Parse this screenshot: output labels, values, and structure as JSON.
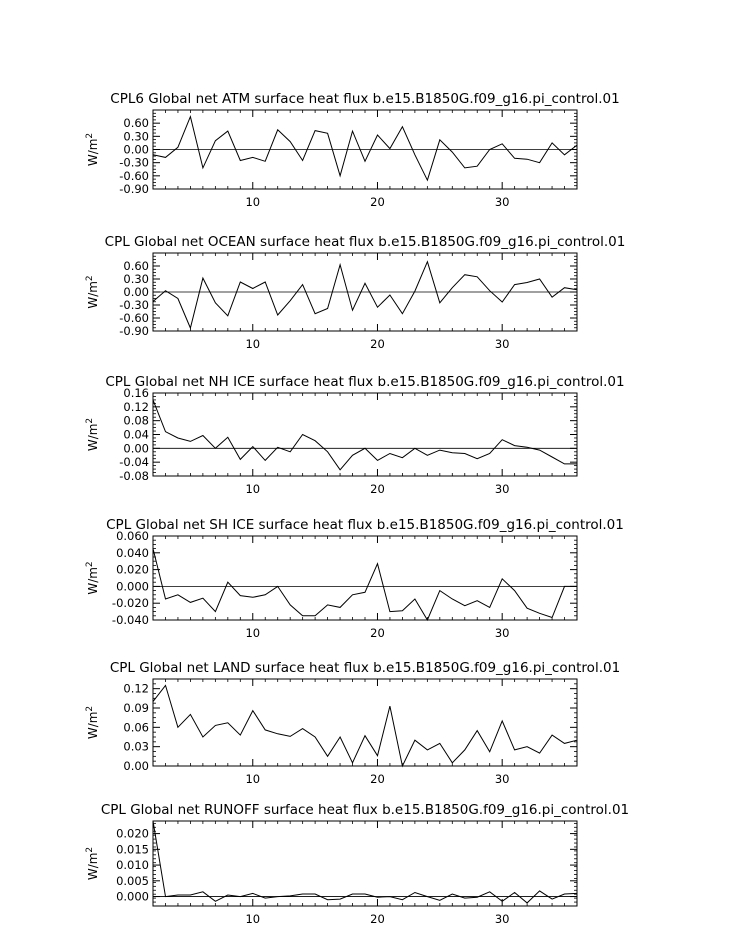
{
  "chart_data": [
    {
      "type": "line",
      "title": "CPL6 Global net ATM surface heat flux b.e15.B1850G.f09_g16.pi_control.01",
      "ylabel": "W/m",
      "ylabel_sup": "2",
      "xlim": [
        2,
        36
      ],
      "ylim": [
        -0.9,
        0.9
      ],
      "xticks": [
        10,
        20,
        30
      ],
      "yticks": [
        0.6,
        0.3,
        0.0,
        -0.3,
        -0.6,
        -0.9
      ],
      "ytick_labels": [
        "0.60",
        "0.30",
        "0.00",
        "-0.30",
        "-0.60",
        "-0.90"
      ],
      "reference_line": 0,
      "x": [
        2,
        3,
        4,
        5,
        6,
        7,
        8,
        9,
        10,
        11,
        12,
        13,
        14,
        15,
        16,
        17,
        18,
        19,
        20,
        21,
        22,
        23,
        24,
        25,
        26,
        27,
        28,
        29,
        30,
        31,
        32,
        33,
        34,
        35,
        36
      ],
      "values": [
        -0.12,
        -0.18,
        0.05,
        0.75,
        -0.42,
        0.2,
        0.42,
        -0.25,
        -0.18,
        -0.27,
        0.45,
        0.18,
        -0.25,
        0.43,
        0.37,
        -0.6,
        0.42,
        -0.27,
        0.33,
        0.02,
        0.52,
        -0.12,
        -0.7,
        0.22,
        -0.06,
        -0.42,
        -0.38,
        0.0,
        0.13,
        -0.2,
        -0.22,
        -0.3,
        0.15,
        -0.12,
        0.1
      ]
    },
    {
      "type": "line",
      "title": "CPL Global net OCEAN surface heat flux b.e15.B1850G.f09_g16.pi_control.01",
      "ylabel": "W/m",
      "ylabel_sup": "2",
      "xlim": [
        2,
        36
      ],
      "ylim": [
        -0.9,
        0.9
      ],
      "xticks": [
        10,
        20,
        30
      ],
      "yticks": [
        0.6,
        0.3,
        0.0,
        -0.3,
        -0.6,
        -0.9
      ],
      "ytick_labels": [
        "0.60",
        "0.30",
        "0.00",
        "-0.30",
        "-0.60",
        "-0.90"
      ],
      "reference_line": 0,
      "x": [
        2,
        3,
        4,
        5,
        6,
        7,
        8,
        9,
        10,
        11,
        12,
        13,
        14,
        15,
        16,
        17,
        18,
        19,
        20,
        21,
        22,
        23,
        24,
        25,
        26,
        27,
        28,
        29,
        30,
        31,
        32,
        33,
        34,
        35,
        36
      ],
      "values": [
        -0.22,
        0.03,
        -0.15,
        -0.83,
        0.32,
        -0.25,
        -0.55,
        0.23,
        0.08,
        0.23,
        -0.53,
        -0.2,
        0.17,
        -0.5,
        -0.38,
        0.63,
        -0.42,
        0.2,
        -0.35,
        -0.07,
        -0.5,
        0.02,
        0.7,
        -0.25,
        0.1,
        0.4,
        0.35,
        0.03,
        -0.23,
        0.17,
        0.22,
        0.3,
        -0.12,
        0.1,
        0.05
      ]
    },
    {
      "type": "line",
      "title": "CPL Global net NH ICE surface heat flux b.e15.B1850G.f09_g16.pi_control.01",
      "ylabel": "W/m",
      "ylabel_sup": "2",
      "xlim": [
        2,
        36
      ],
      "ylim": [
        -0.08,
        0.16
      ],
      "xticks": [
        10,
        20,
        30
      ],
      "yticks": [
        0.16,
        0.12,
        0.08,
        0.04,
        0.0,
        -0.04,
        -0.08
      ],
      "ytick_labels": [
        "0.16",
        "0.12",
        "0.08",
        "0.04",
        "0.00",
        "-0.04",
        "-0.08"
      ],
      "reference_line": 0,
      "x": [
        2,
        3,
        4,
        5,
        6,
        7,
        8,
        9,
        10,
        11,
        12,
        13,
        14,
        15,
        16,
        17,
        18,
        19,
        20,
        21,
        22,
        23,
        24,
        25,
        26,
        27,
        28,
        29,
        30,
        31,
        32,
        33,
        34,
        35,
        36
      ],
      "values": [
        0.14,
        0.048,
        0.03,
        0.02,
        0.037,
        0.0,
        0.032,
        -0.032,
        0.005,
        -0.035,
        0.003,
        -0.01,
        0.04,
        0.022,
        -0.01,
        -0.062,
        -0.02,
        0.0,
        -0.035,
        -0.015,
        -0.027,
        0.0,
        -0.02,
        -0.005,
        -0.013,
        -0.015,
        -0.03,
        -0.015,
        0.025,
        0.008,
        0.003,
        -0.005,
        -0.025,
        -0.045,
        -0.045
      ]
    },
    {
      "type": "line",
      "title": "CPL Global net SH ICE surface heat flux b.e15.B1850G.f09_g16.pi_control.01",
      "ylabel": "W/m",
      "ylabel_sup": "2",
      "xlim": [
        2,
        36
      ],
      "ylim": [
        -0.04,
        0.06
      ],
      "xticks": [
        10,
        20,
        30
      ],
      "yticks": [
        0.06,
        0.04,
        0.02,
        0.0,
        -0.02,
        -0.04
      ],
      "ytick_labels": [
        "0.060",
        "0.040",
        "0.020",
        "0.000",
        "-0.020",
        "-0.040"
      ],
      "reference_line": 0,
      "x": [
        2,
        3,
        4,
        5,
        6,
        7,
        8,
        9,
        10,
        11,
        12,
        13,
        14,
        15,
        16,
        17,
        18,
        19,
        20,
        21,
        22,
        23,
        24,
        25,
        26,
        27,
        28,
        29,
        30,
        31,
        32,
        33,
        34,
        35,
        36
      ],
      "values": [
        0.045,
        -0.015,
        -0.01,
        -0.019,
        -0.014,
        -0.03,
        0.005,
        -0.011,
        -0.013,
        -0.01,
        0.0,
        -0.022,
        -0.035,
        -0.035,
        -0.022,
        -0.025,
        -0.01,
        -0.007,
        0.027,
        -0.03,
        -0.029,
        -0.015,
        -0.04,
        -0.005,
        -0.015,
        -0.023,
        -0.017,
        -0.025,
        0.009,
        -0.005,
        -0.026,
        -0.032,
        -0.037,
        0.0,
        0.0
      ]
    },
    {
      "type": "line",
      "title": "CPL Global net LAND surface heat flux b.e15.B1850G.f09_g16.pi_control.01",
      "ylabel": "W/m",
      "ylabel_sup": "2",
      "xlim": [
        2,
        36
      ],
      "ylim": [
        0.0,
        0.135
      ],
      "xticks": [
        10,
        20,
        30
      ],
      "yticks": [
        0.12,
        0.09,
        0.06,
        0.03,
        0.0
      ],
      "ytick_labels": [
        "0.12",
        "0.09",
        "0.06",
        "0.03",
        "0.00"
      ],
      "reference_line": null,
      "x": [
        2,
        3,
        4,
        5,
        6,
        7,
        8,
        9,
        10,
        11,
        12,
        13,
        14,
        15,
        16,
        17,
        18,
        19,
        20,
        21,
        22,
        23,
        24,
        25,
        26,
        27,
        28,
        29,
        30,
        31,
        32,
        33,
        34,
        35,
        36
      ],
      "values": [
        0.1,
        0.125,
        0.06,
        0.08,
        0.045,
        0.063,
        0.067,
        0.048,
        0.086,
        0.056,
        0.05,
        0.046,
        0.058,
        0.045,
        0.015,
        0.045,
        0.005,
        0.047,
        0.016,
        0.093,
        0.0,
        0.04,
        0.025,
        0.035,
        0.005,
        0.025,
        0.055,
        0.022,
        0.07,
        0.025,
        0.03,
        0.02,
        0.048,
        0.035,
        0.04
      ]
    },
    {
      "type": "line",
      "title": "CPL Global net RUNOFF surface heat flux b.e15.B1850G.f09_g16.pi_control.01",
      "ylabel": "W/m",
      "ylabel_sup": "2",
      "xlim": [
        2,
        36
      ],
      "ylim": [
        -0.003,
        0.024
      ],
      "xticks": [
        10,
        20,
        30
      ],
      "yticks": [
        0.02,
        0.015,
        0.01,
        0.005,
        0.0
      ],
      "ytick_labels": [
        "0.020",
        "0.015",
        "0.010",
        "0.005",
        "0.000"
      ],
      "reference_line": 0,
      "x": [
        2,
        3,
        4,
        5,
        6,
        7,
        8,
        9,
        10,
        11,
        12,
        13,
        14,
        15,
        16,
        17,
        18,
        19,
        20,
        21,
        22,
        23,
        24,
        25,
        26,
        27,
        28,
        29,
        30,
        31,
        32,
        33,
        34,
        35,
        36
      ],
      "values": [
        0.024,
        0.0,
        0.0005,
        0.0005,
        0.0015,
        -0.0015,
        0.0005,
        0.0,
        0.001,
        -0.0005,
        0.0,
        0.0002,
        0.0008,
        0.0008,
        -0.001,
        -0.0008,
        0.0008,
        0.0008,
        -0.0002,
        0.0,
        -0.001,
        0.0013,
        0.0,
        -0.0012,
        0.0008,
        -0.0005,
        -0.0002,
        0.0015,
        -0.0015,
        0.0013,
        -0.002,
        0.0018,
        -0.0008,
        0.0008,
        0.001
      ]
    }
  ]
}
